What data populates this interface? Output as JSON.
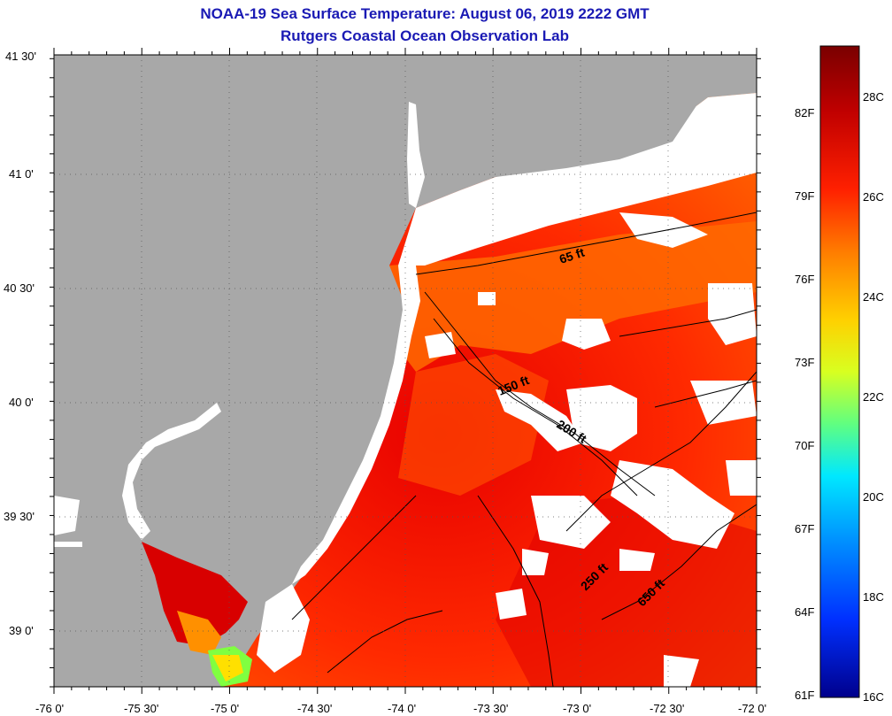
{
  "header": {
    "title": "NOAA-19 Sea Surface Temperature:  August 06, 2019 2222 GMT",
    "subtitle": "Rutgers Coastal Ocean Observation Lab"
  },
  "map": {
    "lon_range": [
      -76,
      -72
    ],
    "lat_range": [
      38.6833,
      41.5
    ],
    "lon_ticks": [
      "-76 0'",
      "-75 30'",
      "-75 0'",
      "-74 30'",
      "-74 0'",
      "-73 30'",
      "-73 0'",
      "-72 30'",
      "-72 0'"
    ],
    "lat_ticks": [
      "41 30'",
      "41 0'",
      "40 30'",
      "40 0'",
      "39 30'",
      "39 0'"
    ],
    "contours": [
      "65 ft",
      "150 ft",
      "200 ft",
      "250 ft",
      "650 ft"
    ]
  },
  "colorbar": {
    "celsius": [
      "28C",
      "26C",
      "24C",
      "22C",
      "20C",
      "18C",
      "16C"
    ],
    "fahrenheit": [
      "82F",
      "79F",
      "76F",
      "73F",
      "70F",
      "67F",
      "64F",
      "61F"
    ],
    "colors": [
      "#7a0000",
      "#c00000",
      "#ff2000",
      "#ff8000",
      "#ffd000",
      "#d8ff20",
      "#60ff80",
      "#00e8ff",
      "#0090ff",
      "#0030ff",
      "#00008c"
    ]
  },
  "colors": {
    "title": "#1a1ab4",
    "land": "#a8a8a8",
    "cloud": "#ffffff",
    "ocean_warm": "#ff2a00",
    "ocean_orange": "#ff6a00",
    "ocean_red": "#e60000"
  }
}
